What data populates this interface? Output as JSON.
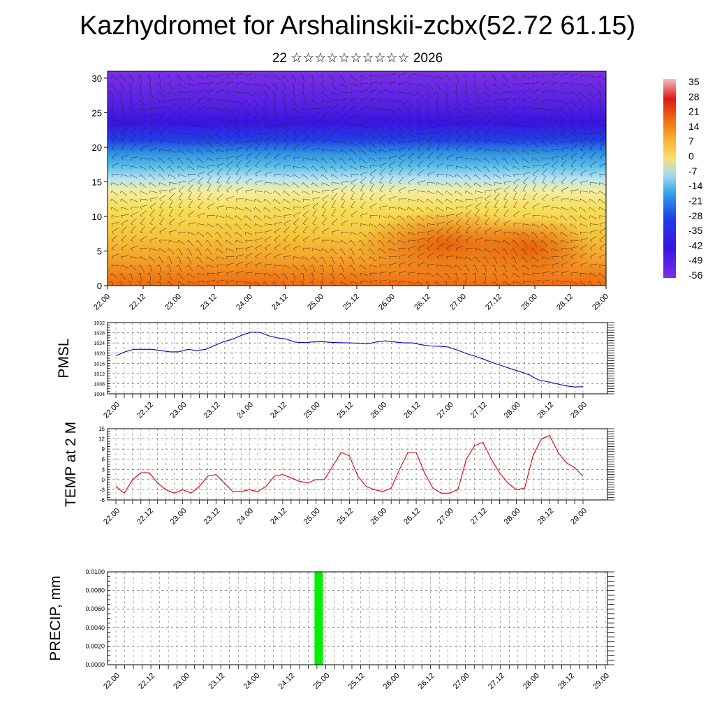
{
  "header": {
    "title": "Kazhydromet for Arshalinskii-zcbx(52.72 61.15)",
    "subtitle": "22 ☆☆☆☆☆☆☆☆☆☆ 2026"
  },
  "time_labels": [
    "22.00",
    "22.12",
    "23.00",
    "23.12",
    "24.00",
    "24.12",
    "25.00",
    "25.12",
    "26.00",
    "26.12",
    "27.00",
    "27.12",
    "28.00",
    "28.12",
    "29.00"
  ],
  "chart_data": [
    {
      "type": "heatmap",
      "title": "",
      "xlabel": "",
      "ylabel": "",
      "ylim": [
        0,
        31
      ],
      "y_ticks": [
        "0",
        "5",
        "10",
        "15",
        "20",
        "25",
        "30"
      ],
      "colorbar_labels": [
        "35",
        "28",
        "21",
        "14",
        "7",
        "0",
        "-7",
        "-14",
        "-21",
        "-28",
        "-35",
        "-42",
        "-49",
        "-56"
      ],
      "colors": {
        "warm": "#f06a10",
        "mid": "#f7d64a",
        "cool": "#3ab6e6",
        "cold": "#2a10e0",
        "coldest": "#7a2ee8"
      }
    },
    {
      "type": "line",
      "ylabel": "PMSL",
      "ylim": [
        1004,
        1032
      ],
      "y_ticks": [
        "1032",
        "1028",
        "1024",
        "1020",
        "1016",
        "1012",
        "1008",
        "1004"
      ],
      "color": "#0000cc",
      "values": [
        1019,
        1020.5,
        1021.5,
        1021.5,
        1021.5,
        1021,
        1020.5,
        1020.5,
        1021.5,
        1021,
        1021.5,
        1023,
        1024.5,
        1025.5,
        1027,
        1028.2,
        1028.2,
        1026.8,
        1026,
        1025.5,
        1024.3,
        1024.1,
        1024.4,
        1024.5,
        1024.2,
        1024.1,
        1024,
        1023.9,
        1023.6,
        1024.4,
        1024.8,
        1024.4,
        1024,
        1024,
        1023.3,
        1022.8,
        1022.7,
        1022.4,
        1021.2,
        1019.8,
        1018.8,
        1017.5,
        1016.2,
        1015,
        1013.8,
        1012.7,
        1011.5,
        1009.5,
        1008.8,
        1008,
        1007.2,
        1006.7,
        1006.8
      ]
    },
    {
      "type": "line",
      "ylabel": "TEMP at 2 M",
      "ylim": [
        -6,
        15
      ],
      "y_ticks": [
        "15",
        "12",
        "9",
        "6",
        "3",
        "0",
        "-3",
        "-6"
      ],
      "color": "#dd0000",
      "values": [
        -2,
        -4,
        0,
        2,
        2,
        -1,
        -3,
        -4,
        -3,
        -4,
        -2,
        1,
        1.5,
        -1,
        -3.5,
        -3.5,
        -3,
        -3.5,
        -2,
        1,
        1.5,
        0.5,
        -0.5,
        -1,
        0,
        0,
        4,
        8,
        7,
        1,
        -2,
        -3,
        -3.5,
        -2.5,
        3,
        8,
        8,
        2,
        -2.5,
        -4,
        -4,
        -3,
        6,
        10,
        11,
        6,
        2,
        -1,
        -3,
        -2.5,
        7,
        12,
        13,
        8,
        5,
        3.5,
        1
      ]
    },
    {
      "type": "bar",
      "ylabel": "PRECIP, mm",
      "ylim": [
        0,
        0.01
      ],
      "y_ticks": [
        "0.0100",
        "0.0080",
        "0.0060",
        "0.0040",
        "0.0020",
        "0.0000"
      ],
      "color": "#00ee00",
      "bars": [
        {
          "x": "25.00",
          "value": 0.01
        }
      ]
    }
  ]
}
